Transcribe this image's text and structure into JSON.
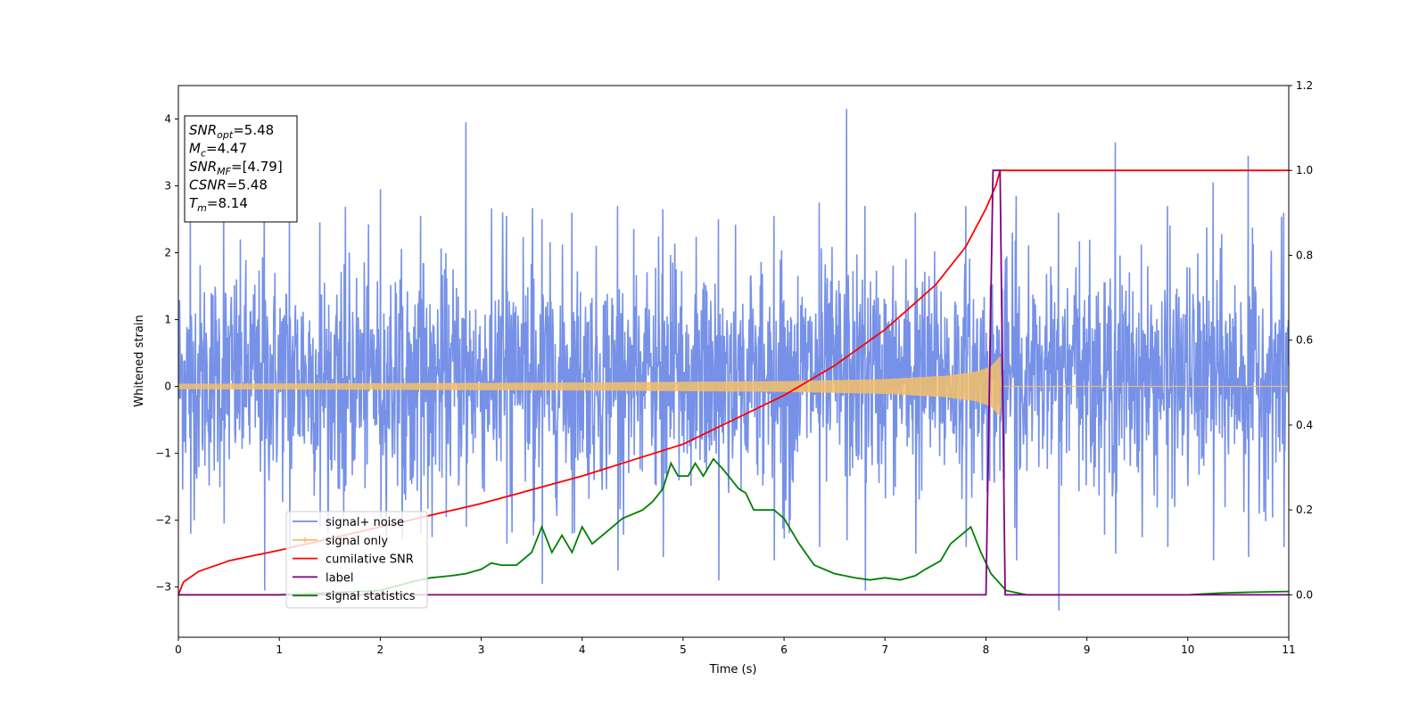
{
  "chart_data": {
    "type": "line",
    "xlabel": "Time (s)",
    "ylabel": "Whitened strain",
    "xlim": [
      0,
      11
    ],
    "ylim_left": [
      -3.75,
      4.5
    ],
    "ylim_right": [
      -0.1,
      1.2
    ],
    "x_ticks": [
      0,
      1,
      2,
      3,
      4,
      5,
      6,
      7,
      8,
      9,
      10,
      11
    ],
    "y_ticks_left": [
      -3,
      -2,
      -1,
      0,
      1,
      2,
      3,
      4
    ],
    "y_ticks_right": [
      0.0,
      0.2,
      0.4,
      0.6,
      0.8,
      1.0,
      1.2
    ],
    "y_tick_labels_left": [
      "−3",
      "−2",
      "−1",
      "0",
      "1",
      "2",
      "3",
      "4"
    ],
    "y_tick_labels_right": [
      "0.0",
      "0.2",
      "0.4",
      "0.6",
      "0.8",
      "1.0",
      "1.2"
    ],
    "legend_position": "lower-left",
    "info_box": {
      "lines": [
        {
          "main": "SNR",
          "sub": "opt",
          "value": "=5.48"
        },
        {
          "main": "M",
          "sub": "c",
          "value": "=4.47"
        },
        {
          "main": "SNR",
          "sub": "MF",
          "value": "=[4.79]"
        },
        {
          "main": "CSNR",
          "sub": "",
          "value": "=5.48"
        },
        {
          "main": "T",
          "sub": "m",
          "value": "=8.14"
        }
      ]
    },
    "series": [
      {
        "name": "signal+ noise",
        "axis": "left",
        "color": "#6f8be6",
        "description_value": "noise envelope approx between -2.3 and 2.7",
        "spikes": [
          [
            0.12,
            2.6,
            -2.2
          ],
          [
            0.45,
            2.7,
            -2.05
          ],
          [
            0.85,
            2.75,
            -3.05
          ],
          [
            1.1,
            2.6,
            -2.4
          ],
          [
            1.4,
            2.45,
            -2.1
          ],
          [
            2.0,
            2.95,
            -2.0
          ],
          [
            2.4,
            2.55,
            -2.2
          ],
          [
            2.85,
            3.95,
            -2.1
          ],
          [
            3.25,
            2.55,
            -2.35
          ],
          [
            3.6,
            2.5,
            -2.95
          ],
          [
            3.9,
            2.6,
            -2.2
          ],
          [
            4.35,
            2.7,
            -2.75
          ],
          [
            4.8,
            2.65,
            -2.55
          ],
          [
            5.35,
            2.5,
            -2.9
          ],
          [
            5.9,
            2.55,
            -2.6
          ],
          [
            6.35,
            2.75,
            -2.4
          ],
          [
            6.62,
            4.15,
            -2.3
          ],
          [
            6.8,
            2.7,
            -3.05
          ],
          [
            7.3,
            2.6,
            -2.5
          ],
          [
            7.8,
            2.7,
            -2.4
          ],
          [
            8.3,
            2.85,
            -2.6
          ],
          [
            8.72,
            2.6,
            -3.35
          ],
          [
            9.28,
            3.65,
            -2.5
          ],
          [
            9.8,
            2.7,
            -2.4
          ],
          [
            10.25,
            3.05,
            -2.6
          ],
          [
            10.6,
            3.45,
            -2.55
          ],
          [
            10.95,
            2.6,
            -2.4
          ]
        ]
      },
      {
        "name": "signal only",
        "axis": "left",
        "color": "#f5c06a",
        "envelope": [
          [
            0,
            0.04
          ],
          [
            2,
            0.05
          ],
          [
            4,
            0.06
          ],
          [
            6,
            0.08
          ],
          [
            7,
            0.11
          ],
          [
            7.6,
            0.16
          ],
          [
            7.9,
            0.22
          ],
          [
            8.05,
            0.3
          ],
          [
            8.14,
            0.45
          ],
          [
            8.15,
            0.0
          ],
          [
            11,
            0.0
          ]
        ]
      },
      {
        "name": "cumilative SNR",
        "axis": "right",
        "color": "#ff0000",
        "x": [
          0,
          0.05,
          0.2,
          0.5,
          1,
          2,
          3,
          4,
          5,
          6,
          6.5,
          7,
          7.5,
          7.8,
          8.0,
          8.1,
          8.14,
          9,
          10,
          11
        ],
        "values": [
          0.0,
          0.03,
          0.055,
          0.08,
          0.105,
          0.16,
          0.215,
          0.28,
          0.355,
          0.47,
          0.54,
          0.625,
          0.73,
          0.82,
          0.91,
          0.965,
          1.0,
          1.0,
          1.0,
          1.0
        ]
      },
      {
        "name": "label",
        "axis": "right",
        "color": "#800080",
        "x": [
          0,
          8.0,
          8.07,
          8.14,
          8.19,
          11
        ],
        "values": [
          0.0,
          0.0,
          1.0,
          1.0,
          0.0,
          0.0
        ]
      },
      {
        "name": "signal statistics",
        "axis": "right",
        "color": "#008000",
        "x": [
          0,
          0.5,
          1.0,
          1.5,
          2.0,
          2.3,
          2.5,
          2.7,
          2.85,
          3.0,
          3.1,
          3.2,
          3.35,
          3.5,
          3.6,
          3.7,
          3.8,
          3.9,
          4.0,
          4.1,
          4.2,
          4.4,
          4.6,
          4.7,
          4.8,
          4.88,
          4.95,
          5.05,
          5.12,
          5.2,
          5.3,
          5.38,
          5.45,
          5.55,
          5.62,
          5.7,
          5.8,
          5.9,
          6.0,
          6.15,
          6.3,
          6.5,
          6.7,
          6.85,
          7.0,
          7.15,
          7.3,
          7.4,
          7.55,
          7.65,
          7.75,
          7.85,
          7.95,
          8.05,
          8.2,
          8.4,
          8.8,
          9.2,
          9.6,
          10.0,
          10.3,
          10.6,
          11.0
        ],
        "values": [
          0.0,
          0.0,
          0.0,
          0.005,
          0.01,
          0.03,
          0.04,
          0.045,
          0.05,
          0.06,
          0.075,
          0.07,
          0.07,
          0.1,
          0.16,
          0.1,
          0.14,
          0.1,
          0.16,
          0.12,
          0.14,
          0.18,
          0.2,
          0.22,
          0.25,
          0.31,
          0.28,
          0.28,
          0.31,
          0.28,
          0.32,
          0.3,
          0.28,
          0.25,
          0.24,
          0.2,
          0.2,
          0.2,
          0.18,
          0.12,
          0.07,
          0.05,
          0.04,
          0.035,
          0.04,
          0.035,
          0.045,
          0.06,
          0.08,
          0.12,
          0.14,
          0.16,
          0.1,
          0.05,
          0.01,
          0.0,
          0.0,
          0.0,
          0.0,
          0.0,
          0.004,
          0.006,
          0.008
        ]
      }
    ]
  }
}
